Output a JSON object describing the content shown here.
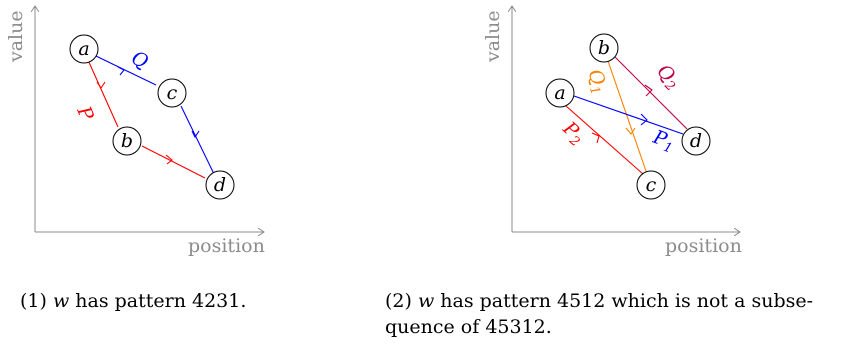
{
  "figures": [
    {
      "axes": {
        "x_label": "position",
        "y_label": "value"
      },
      "nodes": {
        "a": "a",
        "b": "b",
        "c": "c",
        "d": "d"
      },
      "edges": [
        {
          "name": "Q",
          "sub": "",
          "color": "#0000ff"
        },
        {
          "name": "P",
          "sub": "",
          "color": "#ff0000"
        }
      ],
      "caption": {
        "number": "(1)",
        "var": "w",
        "text": " has pattern 4231."
      }
    },
    {
      "axes": {
        "x_label": "position",
        "y_label": "value"
      },
      "nodes": {
        "a": "a",
        "b": "b",
        "c": "c",
        "d": "d"
      },
      "edges": [
        {
          "name": "Q",
          "sub": "1",
          "color": "#ff8000"
        },
        {
          "name": "Q",
          "sub": "2",
          "color": "#bf0040"
        },
        {
          "name": "P",
          "sub": "1",
          "color": "#0000ff"
        },
        {
          "name": "P",
          "sub": "2",
          "color": "#ff0000"
        }
      ],
      "caption": {
        "number": "(2)",
        "var": "w",
        "text": " has pattern 4512 which is not a subse-",
        "text2": "quence of 45312."
      }
    }
  ]
}
